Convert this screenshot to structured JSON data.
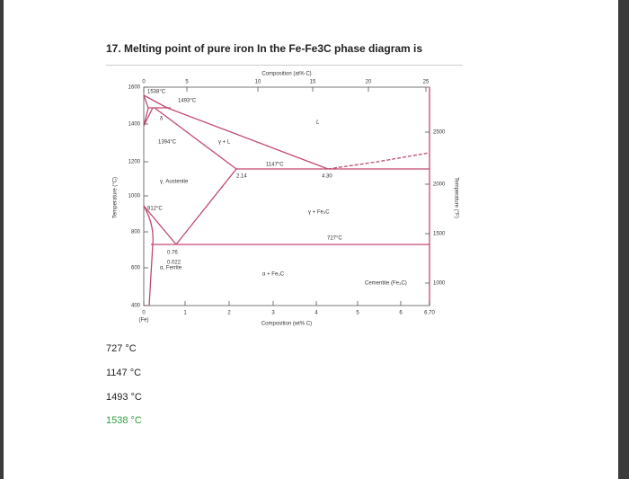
{
  "question": {
    "title": "17. Melting point of pure iron In the Fe-Fe3C phase diagram is",
    "options": [
      "727 °C",
      "1147 °C",
      "1493 °C",
      "1538 °C"
    ]
  },
  "diagram": {
    "top_axis_label": "Composition (at% C)",
    "top_ticks": [
      "0",
      "5",
      "10",
      "15",
      "20",
      "25"
    ],
    "left_axis_label": "Temperature (°C)",
    "left_ticks": [
      "1600",
      "1400",
      "1200",
      "1000",
      "800",
      "600",
      "400"
    ],
    "right_axis_label": "Temperature (°F)",
    "right_ticks": [
      "2500",
      "2000",
      "1500",
      "1000"
    ],
    "bottom_axis_label": "Composition (wt% C)",
    "bottom_ticks": [
      "0",
      "1",
      "2",
      "3",
      "4",
      "5",
      "6",
      "6.70"
    ],
    "bottom_origin_label": "(Fe)",
    "labels": [
      "1538°C",
      "1493°C",
      "1394°C",
      "1147°C",
      "912°C",
      "727°C",
      "2.14",
      "4.30",
      "0.76",
      "0.022",
      "L",
      "γ + L",
      "γ, Austenite",
      "γ + Fe₃C",
      "α + Fe₃C",
      "α, Ferrite",
      "δ",
      "Cementite (Fe₃C)"
    ]
  }
}
